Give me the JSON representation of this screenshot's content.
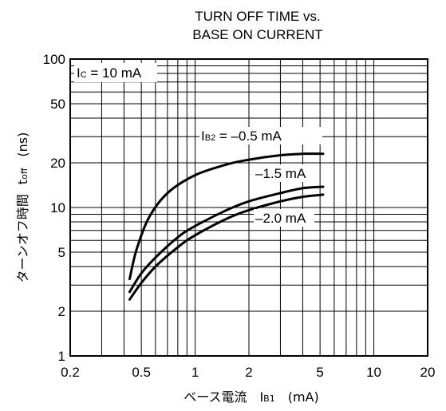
{
  "chart_data": {
    "type": "line",
    "title": [
      "TURN OFF TIME vs.",
      "BASE ON CURRENT"
    ],
    "xlabel": "ベース電流　I<sub>B1</sub>　(mA)",
    "xlabel_parts": {
      "prefix": "ベース電流",
      "symbol": "I",
      "subscript": "B1",
      "unit": "(mA)"
    },
    "ylabel_parts": {
      "prefix": "ターンオフ時間",
      "symbol": "t",
      "subscript": "off",
      "unit": "(ns)"
    },
    "x_scale": "log",
    "y_scale": "log",
    "xlim": [
      0.2,
      20
    ],
    "ylim": [
      1,
      100
    ],
    "x_ticks": [
      0.2,
      0.5,
      1,
      2,
      5,
      10,
      20
    ],
    "x_tick_labels": [
      "0.2",
      "0.5",
      "1",
      "2",
      "5",
      "10",
      "20"
    ],
    "y_ticks": [
      1,
      2,
      5,
      10,
      20,
      50,
      100
    ],
    "y_tick_labels": [
      "1",
      "2",
      "5",
      "10",
      "20",
      "50",
      "100"
    ],
    "grid": true,
    "condition": {
      "symbol": "I",
      "subscript": "C",
      "text": " = 10 mA"
    },
    "series": [
      {
        "name": "I_B2 = -0.5 mA",
        "label_parts": {
          "symbol": "I",
          "subscript": "B2",
          "text": " = –0.5 mA"
        },
        "x": [
          0.43,
          0.47,
          0.55,
          0.7,
          1.0,
          1.5,
          2.0,
          3.0,
          4.0,
          5.2
        ],
        "y": [
          3.3,
          5.2,
          8.5,
          12.5,
          16.5,
          19.5,
          21,
          22.5,
          23,
          23
        ]
      },
      {
        "name": "-1.5 mA",
        "label_parts": {
          "symbol": "",
          "subscript": "",
          "text": "–1.5 mA"
        },
        "x": [
          0.43,
          0.5,
          0.6,
          0.8,
          1.0,
          1.5,
          2.0,
          3.0,
          4.0,
          5.2
        ],
        "y": [
          2.7,
          3.6,
          4.6,
          6.3,
          7.5,
          9.6,
          11,
          12.5,
          13.5,
          13.8
        ]
      },
      {
        "name": "-2.0 mA",
        "label_parts": {
          "symbol": "",
          "subscript": "",
          "text": "–2.0 mA"
        },
        "x": [
          0.43,
          0.5,
          0.6,
          0.8,
          1.0,
          1.5,
          2.0,
          3.0,
          4.0,
          5.2
        ],
        "y": [
          2.4,
          3.1,
          4.0,
          5.4,
          6.5,
          8.4,
          9.6,
          11,
          11.8,
          12.2
        ]
      }
    ]
  }
}
